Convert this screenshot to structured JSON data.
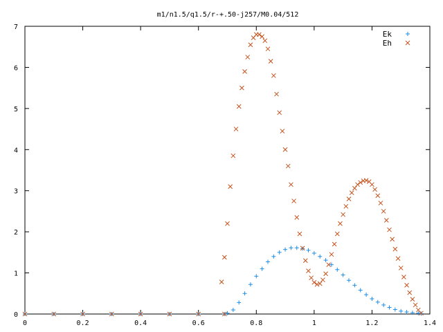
{
  "chart_data": {
    "type": "scatter",
    "title": "m1/n1.5/q1.5/r-+.50-j257/M0.04/512",
    "xlabel": "",
    "ylabel": "",
    "xlim": [
      0,
      1.4
    ],
    "ylim": [
      0,
      7
    ],
    "x_ticks": [
      "0",
      "0.2",
      "0.4",
      "0.6",
      "0.8",
      "1",
      "1.2",
      "1.4"
    ],
    "y_ticks": [
      "0",
      "1",
      "2",
      "3",
      "4",
      "5",
      "6",
      "7"
    ],
    "grid": false,
    "legend_position": "top-right",
    "series": [
      {
        "name": "Ek",
        "marker": "plus",
        "color": "#1e8ee6",
        "points": [
          [
            0.0,
            0
          ],
          [
            0.1,
            0
          ],
          [
            0.2,
            0
          ],
          [
            0.3,
            0
          ],
          [
            0.4,
            0
          ],
          [
            0.5,
            0
          ],
          [
            0.6,
            0
          ],
          [
            0.69,
            0
          ],
          [
            0.7,
            0.02
          ],
          [
            0.72,
            0.1
          ],
          [
            0.74,
            0.28
          ],
          [
            0.76,
            0.5
          ],
          [
            0.78,
            0.72
          ],
          [
            0.8,
            0.92
          ],
          [
            0.82,
            1.1
          ],
          [
            0.84,
            1.27
          ],
          [
            0.86,
            1.4
          ],
          [
            0.88,
            1.5
          ],
          [
            0.9,
            1.57
          ],
          [
            0.92,
            1.61
          ],
          [
            0.94,
            1.61
          ],
          [
            0.96,
            1.59
          ],
          [
            0.98,
            1.55
          ],
          [
            1.0,
            1.48
          ],
          [
            1.02,
            1.4
          ],
          [
            1.04,
            1.31
          ],
          [
            1.06,
            1.2
          ],
          [
            1.08,
            1.08
          ],
          [
            1.1,
            0.95
          ],
          [
            1.12,
            0.82
          ],
          [
            1.14,
            0.7
          ],
          [
            1.16,
            0.58
          ],
          [
            1.18,
            0.47
          ],
          [
            1.2,
            0.37
          ],
          [
            1.22,
            0.29
          ],
          [
            1.24,
            0.22
          ],
          [
            1.26,
            0.16
          ],
          [
            1.28,
            0.11
          ],
          [
            1.3,
            0.07
          ],
          [
            1.32,
            0.05
          ],
          [
            1.34,
            0.03
          ],
          [
            1.36,
            0.02
          ],
          [
            1.37,
            0.01
          ]
        ]
      },
      {
        "name": "Eh",
        "marker": "cross",
        "color": "#c4521c",
        "points": [
          [
            0.0,
            0
          ],
          [
            0.1,
            0
          ],
          [
            0.2,
            0
          ],
          [
            0.3,
            0
          ],
          [
            0.4,
            0
          ],
          [
            0.5,
            0
          ],
          [
            0.6,
            0
          ],
          [
            0.69,
            0
          ],
          [
            0.68,
            0.78
          ],
          [
            0.69,
            1.38
          ],
          [
            0.7,
            2.2
          ],
          [
            0.71,
            3.1
          ],
          [
            0.72,
            3.85
          ],
          [
            0.73,
            4.5
          ],
          [
            0.74,
            5.05
          ],
          [
            0.75,
            5.5
          ],
          [
            0.76,
            5.9
          ],
          [
            0.77,
            6.25
          ],
          [
            0.78,
            6.55
          ],
          [
            0.79,
            6.72
          ],
          [
            0.8,
            6.8
          ],
          [
            0.81,
            6.8
          ],
          [
            0.82,
            6.75
          ],
          [
            0.83,
            6.65
          ],
          [
            0.84,
            6.45
          ],
          [
            0.85,
            6.15
          ],
          [
            0.86,
            5.8
          ],
          [
            0.87,
            5.35
          ],
          [
            0.88,
            4.9
          ],
          [
            0.89,
            4.45
          ],
          [
            0.9,
            4.0
          ],
          [
            0.91,
            3.6
          ],
          [
            0.92,
            3.15
          ],
          [
            0.93,
            2.75
          ],
          [
            0.94,
            2.35
          ],
          [
            0.95,
            1.95
          ],
          [
            0.96,
            1.6
          ],
          [
            0.97,
            1.3
          ],
          [
            0.98,
            1.05
          ],
          [
            0.99,
            0.88
          ],
          [
            1.0,
            0.77
          ],
          [
            1.01,
            0.72
          ],
          [
            1.02,
            0.74
          ],
          [
            1.03,
            0.83
          ],
          [
            1.04,
            0.98
          ],
          [
            1.05,
            1.2
          ],
          [
            1.06,
            1.45
          ],
          [
            1.07,
            1.7
          ],
          [
            1.08,
            1.95
          ],
          [
            1.09,
            2.2
          ],
          [
            1.1,
            2.42
          ],
          [
            1.11,
            2.62
          ],
          [
            1.12,
            2.8
          ],
          [
            1.13,
            2.95
          ],
          [
            1.14,
            3.06
          ],
          [
            1.15,
            3.15
          ],
          [
            1.16,
            3.2
          ],
          [
            1.17,
            3.24
          ],
          [
            1.18,
            3.25
          ],
          [
            1.19,
            3.22
          ],
          [
            1.2,
            3.15
          ],
          [
            1.21,
            3.03
          ],
          [
            1.22,
            2.88
          ],
          [
            1.23,
            2.7
          ],
          [
            1.24,
            2.5
          ],
          [
            1.25,
            2.28
          ],
          [
            1.26,
            2.05
          ],
          [
            1.27,
            1.82
          ],
          [
            1.28,
            1.58
          ],
          [
            1.29,
            1.35
          ],
          [
            1.3,
            1.12
          ],
          [
            1.31,
            0.9
          ],
          [
            1.32,
            0.7
          ],
          [
            1.33,
            0.52
          ],
          [
            1.34,
            0.36
          ],
          [
            1.35,
            0.22
          ],
          [
            1.36,
            0.1
          ],
          [
            1.37,
            0.02
          ]
        ]
      }
    ]
  }
}
